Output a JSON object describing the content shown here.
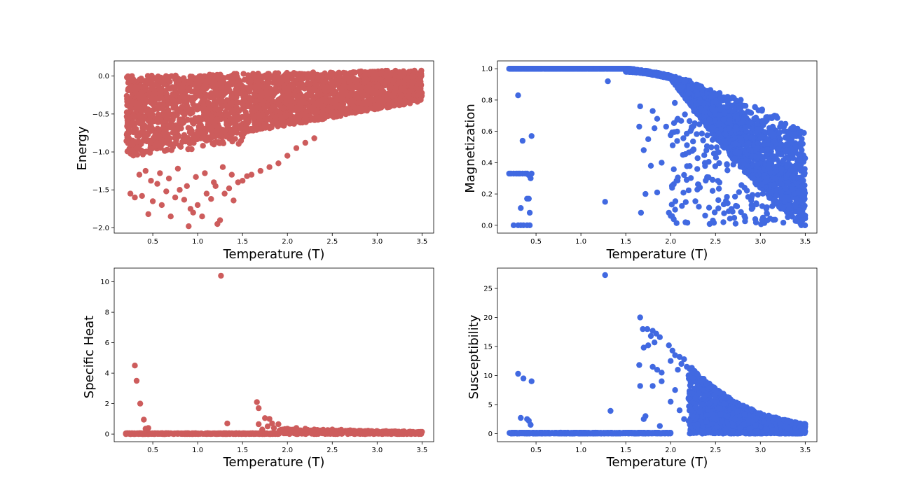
{
  "colors": {
    "red": "#cd5c5c",
    "blue": "#4169e1",
    "axis": "#000000",
    "background": "#ffffff"
  },
  "chart_data": [
    {
      "id": "energy",
      "type": "scatter",
      "title": "",
      "xlabel": "Temperature (T)",
      "ylabel": "Energy",
      "color": "#cd5c5c",
      "xlim": [
        0.07,
        3.63
      ],
      "ylim": [
        -2.07,
        0.2
      ],
      "xticks": [
        0.5,
        1.0,
        1.5,
        2.0,
        2.5,
        3.0,
        3.5
      ],
      "xtick_labels": [
        "0.5",
        "1.0",
        "1.5",
        "2.0",
        "2.5",
        "3.0",
        "3.5"
      ],
      "yticks": [
        -2.0,
        -1.5,
        -1.0,
        -0.5,
        0.0
      ],
      "ytick_labels": [
        "−2.0",
        "−1.5",
        "−1.0",
        "−0.5",
        "0.0"
      ],
      "x_range": [
        0.2,
        3.5
      ],
      "band": {
        "upper_start": 0.0,
        "upper_end": 0.08,
        "lower_start": -0.95,
        "lower_end": -0.33
      },
      "points": [
        [
          0.25,
          -1.55
        ],
        [
          0.3,
          -1.6
        ],
        [
          0.38,
          -1.58
        ],
        [
          0.45,
          -1.82
        ],
        [
          0.5,
          -1.65
        ],
        [
          0.55,
          -1.42
        ],
        [
          0.6,
          -1.7
        ],
        [
          0.65,
          -1.52
        ],
        [
          0.7,
          -1.85
        ],
        [
          0.75,
          -1.6
        ],
        [
          0.8,
          -1.5
        ],
        [
          0.85,
          -1.63
        ],
        [
          0.9,
          -1.98
        ],
        [
          0.92,
          -1.75
        ],
        [
          0.95,
          -1.8
        ],
        [
          1.0,
          -1.7
        ],
        [
          1.05,
          -1.85
        ],
        [
          1.1,
          -1.55
        ],
        [
          1.15,
          -1.62
        ],
        [
          1.2,
          -1.45
        ],
        [
          1.22,
          -1.95
        ],
        [
          1.25,
          -1.9
        ],
        [
          1.3,
          -1.55
        ],
        [
          1.35,
          -1.48
        ],
        [
          1.4,
          -1.64
        ],
        [
          1.45,
          -1.4
        ],
        [
          1.5,
          -1.38
        ],
        [
          1.55,
          -1.32
        ],
        [
          1.6,
          -1.3
        ],
        [
          1.7,
          -1.25
        ],
        [
          1.8,
          -1.2
        ],
        [
          1.9,
          -1.15
        ],
        [
          2.0,
          -1.05
        ],
        [
          2.1,
          -0.95
        ],
        [
          2.2,
          -0.88
        ],
        [
          2.3,
          -0.82
        ],
        [
          0.35,
          -1.3
        ],
        [
          0.42,
          -1.25
        ],
        [
          0.48,
          -1.38
        ],
        [
          0.58,
          -1.28
        ],
        [
          0.68,
          -1.35
        ],
        [
          0.78,
          -1.22
        ],
        [
          0.88,
          -1.45
        ],
        [
          0.98,
          -1.33
        ],
        [
          1.08,
          -1.28
        ],
        [
          1.18,
          -1.4
        ],
        [
          1.28,
          -1.2
        ],
        [
          1.38,
          -1.3
        ]
      ]
    },
    {
      "id": "magnetization",
      "type": "scatter",
      "title": "",
      "xlabel": "Temperature (T)",
      "ylabel": "Magnetization",
      "color": "#4169e1",
      "xlim": [
        0.07,
        3.63
      ],
      "ylim": [
        -0.05,
        1.05
      ],
      "xticks": [
        0.5,
        1.0,
        1.5,
        2.0,
        2.5,
        3.0,
        3.5
      ],
      "xtick_labels": [
        "0.5",
        "1.0",
        "1.5",
        "2.0",
        "2.5",
        "3.0",
        "3.5"
      ],
      "yticks": [
        0.0,
        0.2,
        0.4,
        0.6,
        0.8,
        1.0
      ],
      "ytick_labels": [
        "0.0",
        "0.2",
        "0.4",
        "0.6",
        "0.8",
        "1.0"
      ],
      "curve": {
        "t_flat_end": 1.5,
        "m_at_3_5": 0.6
      },
      "points": [
        [
          0.2,
          0.33
        ],
        [
          0.22,
          0.33
        ],
        [
          0.25,
          0.33
        ],
        [
          0.28,
          0.33
        ],
        [
          0.3,
          0.33
        ],
        [
          0.32,
          0.33
        ],
        [
          0.35,
          0.33
        ],
        [
          0.38,
          0.33
        ],
        [
          0.4,
          0.33
        ],
        [
          0.42,
          0.32
        ],
        [
          0.45,
          0.33
        ],
        [
          0.44,
          0.3
        ],
        [
          0.25,
          0.0
        ],
        [
          0.3,
          0.0
        ],
        [
          0.33,
          0.0
        ],
        [
          0.36,
          0.0
        ],
        [
          0.4,
          0.0
        ],
        [
          0.43,
          0.0
        ],
        [
          0.3,
          0.83
        ],
        [
          0.35,
          0.54
        ],
        [
          0.45,
          0.57
        ],
        [
          0.4,
          0.17
        ],
        [
          0.42,
          0.17
        ],
        [
          0.33,
          0.11
        ],
        [
          0.43,
          0.08
        ],
        [
          1.3,
          0.92
        ],
        [
          1.27,
          0.15
        ],
        [
          1.65,
          0.63
        ],
        [
          1.66,
          0.76
        ],
        [
          1.7,
          0.48
        ],
        [
          1.67,
          0.08
        ],
        [
          1.72,
          0.2
        ],
        [
          1.75,
          0.55
        ],
        [
          1.8,
          0.73
        ],
        [
          1.82,
          0.62
        ],
        [
          1.85,
          0.68
        ],
        [
          1.78,
          0.38
        ],
        [
          1.85,
          0.21
        ],
        [
          1.9,
          0.4
        ],
        [
          1.95,
          0.63
        ],
        [
          1.98,
          0.08
        ],
        [
          2.05,
          0.1
        ]
      ]
    },
    {
      "id": "specific-heat",
      "type": "scatter",
      "title": "",
      "xlabel": "Temperature (T)",
      "ylabel": "Specific Heat",
      "color": "#cd5c5c",
      "xlim": [
        0.07,
        3.63
      ],
      "ylim": [
        -0.5,
        10.9
      ],
      "xticks": [
        0.5,
        1.0,
        1.5,
        2.0,
        2.5,
        3.0,
        3.5
      ],
      "xtick_labels": [
        "0.5",
        "1.0",
        "1.5",
        "2.0",
        "2.5",
        "3.0",
        "3.5"
      ],
      "yticks": [
        0,
        2,
        4,
        6,
        8,
        10
      ],
      "ytick_labels": [
        "0",
        "2",
        "4",
        "6",
        "8",
        "10"
      ],
      "points": [
        [
          1.26,
          10.4
        ],
        [
          0.3,
          4.5
        ],
        [
          0.32,
          3.5
        ],
        [
          0.36,
          2.0
        ],
        [
          0.4,
          0.95
        ],
        [
          0.42,
          0.35
        ],
        [
          0.45,
          0.4
        ],
        [
          1.33,
          0.7
        ],
        [
          1.66,
          2.1
        ],
        [
          1.68,
          1.7
        ],
        [
          1.75,
          1.05
        ],
        [
          1.8,
          1.0
        ],
        [
          1.83,
          0.7
        ],
        [
          1.68,
          0.65
        ],
        [
          1.72,
          0.3
        ],
        [
          1.78,
          0.5
        ],
        [
          1.85,
          0.4
        ],
        [
          1.9,
          0.65
        ],
        [
          1.95,
          0.3
        ],
        [
          2.0,
          0.35
        ],
        [
          2.05,
          0.25
        ],
        [
          2.1,
          0.4
        ],
        [
          2.2,
          0.35
        ],
        [
          2.3,
          0.3
        ],
        [
          2.4,
          0.28
        ],
        [
          2.5,
          0.3
        ],
        [
          2.6,
          0.28
        ],
        [
          2.7,
          0.25
        ],
        [
          2.8,
          0.22
        ],
        [
          2.9,
          0.22
        ],
        [
          3.0,
          0.2
        ],
        [
          3.1,
          0.2
        ],
        [
          3.2,
          0.18
        ],
        [
          3.3,
          0.18
        ],
        [
          3.4,
          0.15
        ],
        [
          3.5,
          0.15
        ]
      ]
    },
    {
      "id": "susceptibility",
      "type": "scatter",
      "title": "",
      "xlabel": "Temperature (T)",
      "ylabel": "Susceptibility",
      "color": "#4169e1",
      "xlim": [
        0.07,
        3.63
      ],
      "ylim": [
        -1.4,
        28.5
      ],
      "xticks": [
        0.5,
        1.0,
        1.5,
        2.0,
        2.5,
        3.0,
        3.5
      ],
      "xtick_labels": [
        "0.5",
        "1.0",
        "1.5",
        "2.0",
        "2.5",
        "3.0",
        "3.5"
      ],
      "yticks": [
        0,
        5,
        10,
        15,
        20,
        25
      ],
      "ytick_labels": [
        "0",
        "5",
        "10",
        "15",
        "20",
        "25"
      ],
      "points": [
        [
          1.27,
          27.3
        ],
        [
          0.3,
          10.3
        ],
        [
          0.36,
          9.5
        ],
        [
          0.45,
          9.0
        ],
        [
          0.33,
          2.7
        ],
        [
          0.4,
          2.5
        ],
        [
          0.42,
          2.2
        ],
        [
          0.44,
          1.5
        ],
        [
          1.33,
          3.9
        ],
        [
          1.66,
          20.0
        ],
        [
          1.69,
          18.0
        ],
        [
          1.74,
          18.0
        ],
        [
          1.8,
          17.7
        ],
        [
          1.84,
          17.2
        ],
        [
          1.88,
          16.6
        ],
        [
          1.78,
          16.8
        ],
        [
          1.82,
          15.7
        ],
        [
          1.7,
          14.8
        ],
        [
          1.75,
          15.2
        ],
        [
          1.65,
          11.8
        ],
        [
          1.8,
          11.5
        ],
        [
          1.85,
          11.0
        ],
        [
          1.9,
          10.5
        ],
        [
          1.66,
          8.2
        ],
        [
          1.8,
          8.2
        ],
        [
          1.9,
          9.0
        ],
        [
          1.72,
          3.0
        ],
        [
          1.7,
          2.5
        ],
        [
          1.88,
          1.3
        ],
        [
          1.98,
          15.2
        ],
        [
          2.02,
          14.3
        ],
        [
          2.05,
          13.5
        ],
        [
          2.1,
          13.2
        ],
        [
          2.15,
          12.8
        ],
        [
          2.0,
          12.5
        ],
        [
          2.12,
          12.0
        ],
        [
          2.08,
          11.0
        ],
        [
          2.18,
          11.5
        ],
        [
          2.2,
          10.0
        ],
        [
          2.25,
          9.5
        ],
        [
          2.3,
          10.2
        ],
        [
          2.35,
          9.0
        ],
        [
          2.4,
          8.5
        ],
        [
          2.45,
          8.0
        ],
        [
          2.5,
          7.5
        ],
        [
          2.55,
          7.0
        ],
        [
          2.6,
          6.5
        ],
        [
          2.65,
          6.2
        ],
        [
          2.7,
          5.5
        ],
        [
          2.8,
          4.8
        ],
        [
          2.9,
          4.2
        ],
        [
          3.0,
          3.5
        ],
        [
          3.1,
          3.0
        ],
        [
          3.2,
          2.6
        ],
        [
          3.3,
          2.2
        ],
        [
          3.4,
          1.9
        ],
        [
          3.5,
          1.6
        ],
        [
          2.0,
          5.5
        ],
        [
          2.05,
          7.5
        ],
        [
          2.1,
          4.0
        ],
        [
          2.15,
          2.5
        ],
        [
          2.2,
          6.0
        ],
        [
          2.25,
          3.0
        ],
        [
          2.3,
          1.5
        ],
        [
          2.35,
          5.0
        ],
        [
          2.4,
          2.0
        ]
      ]
    }
  ]
}
